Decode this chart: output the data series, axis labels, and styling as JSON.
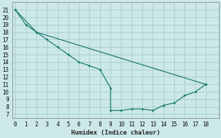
{
  "xlabel": "Humidex (Indice chaleur)",
  "bg_color": "#cce8e8",
  "grid_color": "#aacfcf",
  "line_color": "#1a7a6e",
  "line_upper": {
    "x": [
      0,
      2,
      18
    ],
    "y": [
      21,
      18,
      11
    ]
  },
  "line_lower": {
    "x": [
      0,
      1,
      2,
      3,
      4,
      5,
      6,
      7,
      8,
      9,
      9,
      10,
      11,
      12,
      13,
      14,
      15,
      16,
      17,
      18
    ],
    "y": [
      21,
      19,
      18,
      17,
      16,
      15,
      14,
      13.5,
      13,
      10.5,
      7.5,
      7.5,
      7.7,
      7.7,
      7.5,
      8.2,
      8.5,
      9.5,
      10,
      11
    ]
  },
  "xlim": [
    -0.3,
    19.2
  ],
  "ylim": [
    6.5,
    22.0
  ],
  "xticks": [
    0,
    1,
    2,
    3,
    4,
    5,
    6,
    7,
    8,
    9,
    10,
    11,
    12,
    13,
    14,
    15,
    16,
    17,
    18
  ],
  "yticks": [
    7,
    8,
    9,
    10,
    11,
    12,
    13,
    14,
    15,
    16,
    17,
    18,
    19,
    20,
    21
  ],
  "tick_fontsize": 5.5,
  "label_fontsize": 6.5
}
